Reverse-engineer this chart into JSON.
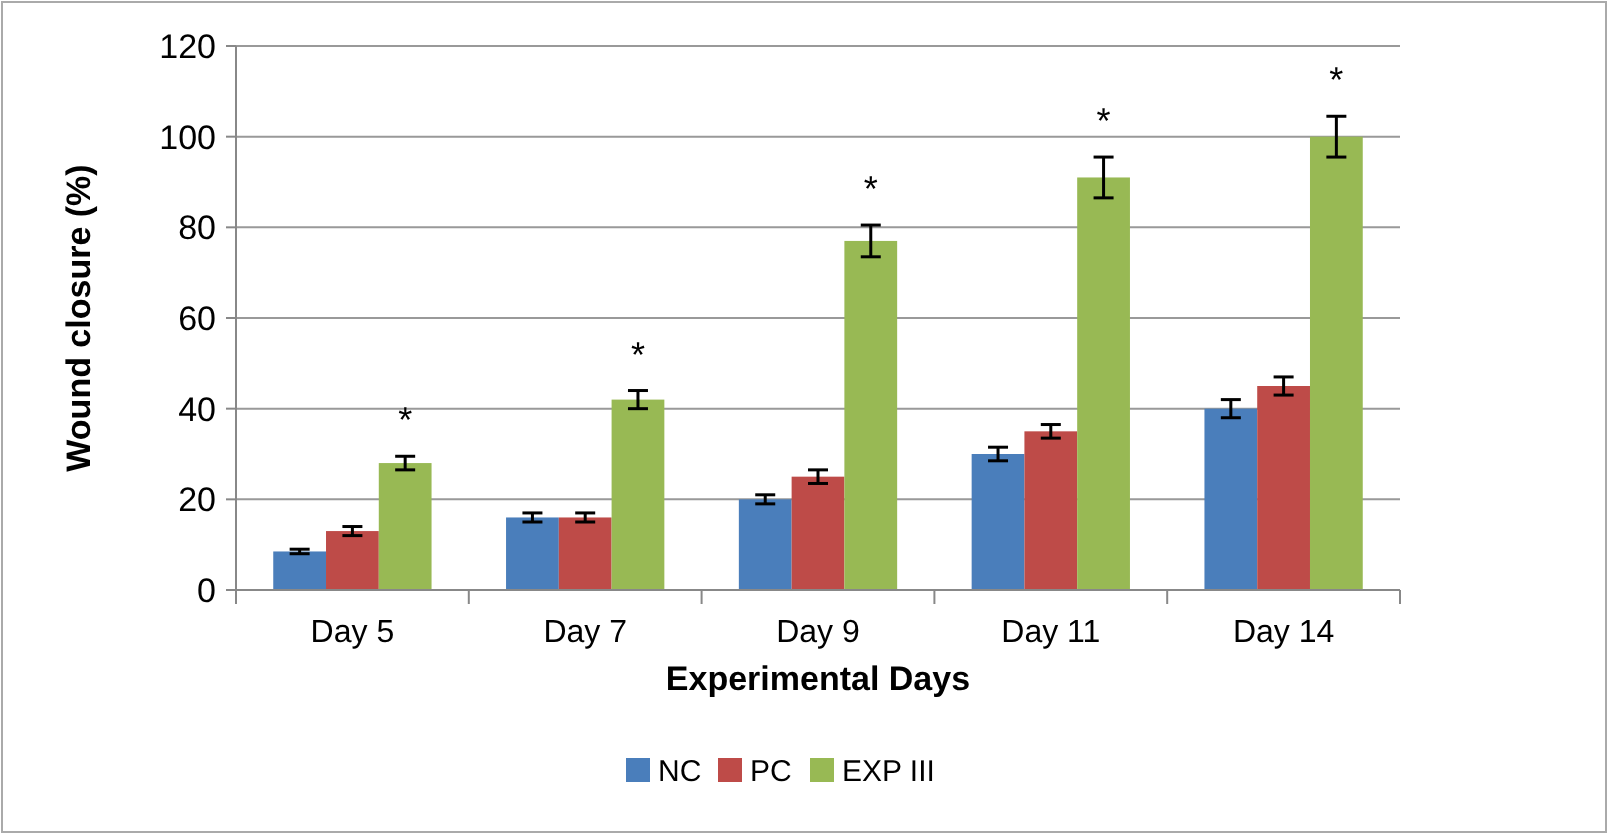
{
  "chart_data": {
    "type": "bar",
    "xlabel": "Experimental Days",
    "ylabel": "Wound closure (%)",
    "categories": [
      "Day 5",
      "Day 7",
      "Day 9",
      "Day 11",
      "Day 14"
    ],
    "series": [
      {
        "name": "NC",
        "color": "#4a7ebb",
        "values": [
          8.5,
          16,
          20,
          30,
          40
        ],
        "errors": [
          0.5,
          1,
          1,
          1.5,
          2
        ]
      },
      {
        "name": "PC",
        "color": "#be4b48",
        "values": [
          13,
          16,
          25,
          35,
          45
        ],
        "errors": [
          1,
          1,
          1.5,
          1.5,
          2
        ]
      },
      {
        "name": "EXP III",
        "color": "#98b954",
        "values": [
          28,
          42,
          77,
          91,
          100
        ],
        "errors": [
          1.5,
          2,
          3.5,
          4.5,
          4.5
        ]
      }
    ],
    "ylim": [
      0,
      120
    ],
    "yticks": [
      0,
      20,
      40,
      60,
      80,
      100,
      120
    ],
    "grid": "y",
    "legend": "bottom",
    "annotations": [
      "*",
      "*",
      "*",
      "*",
      "*"
    ]
  }
}
